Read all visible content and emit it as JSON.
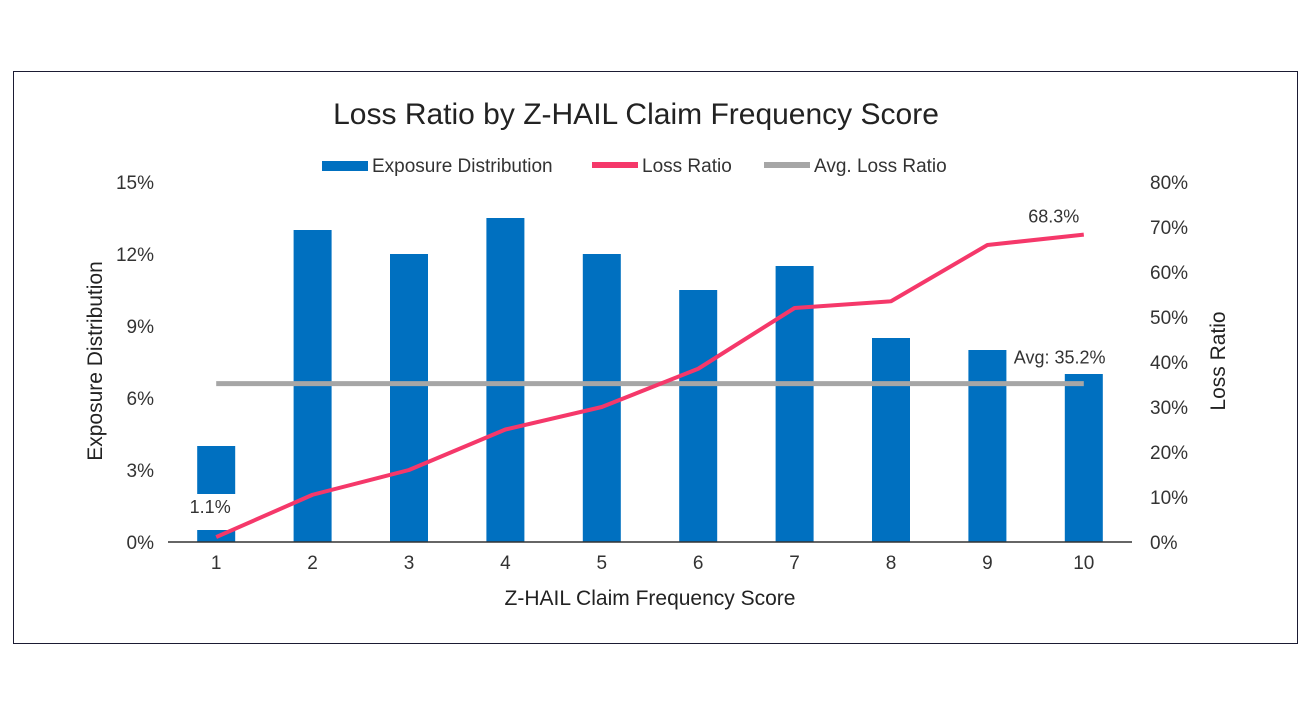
{
  "chart_data": {
    "type": "bar",
    "title": "Loss Ratio by Z-HAIL Claim Frequency Score",
    "xlabel": "Z-HAIL Claim Frequency Score",
    "ylabel": "Exposure Distribution",
    "y2label": "Loss Ratio",
    "categories": [
      "1",
      "2",
      "3",
      "4",
      "5",
      "6",
      "7",
      "8",
      "9",
      "10"
    ],
    "ylim": [
      0,
      15
    ],
    "y2lim": [
      0,
      80
    ],
    "yticks": [
      "0%",
      "3%",
      "6%",
      "9%",
      "12%",
      "15%"
    ],
    "y2ticks": [
      "0%",
      "10%",
      "20%",
      "30%",
      "40%",
      "50%",
      "60%",
      "70%",
      "80%"
    ],
    "legend_position": "top-center",
    "series": [
      {
        "name": "Exposure Distribution",
        "type": "bar",
        "axis": "left",
        "color": "#0070c0",
        "values": [
          0.5,
          13.0,
          12.0,
          13.5,
          12.0,
          10.5,
          11.5,
          8.5,
          8.0,
          7.0
        ]
      },
      {
        "name": "Loss Ratio",
        "type": "line",
        "axis": "right",
        "color": "#f5386a",
        "values": [
          1.1,
          10.5,
          16.0,
          25.0,
          30.0,
          38.5,
          52.0,
          53.5,
          66.0,
          68.3
        ]
      },
      {
        "name": "Avg. Loss Ratio",
        "type": "line",
        "axis": "right",
        "color": "#a6a6a6",
        "values": [
          35.2,
          35.2,
          35.2,
          35.2,
          35.2,
          35.2,
          35.2,
          35.2,
          35.2,
          35.2
        ]
      }
    ],
    "annotations": {
      "first_loss_label": "1.1%",
      "last_loss_label": "68.3%",
      "avg_label": "Avg: 35.2%"
    },
    "inset_legend_box": {
      "color": "#0070c0",
      "range": [
        2.0,
        4.0
      ]
    }
  }
}
